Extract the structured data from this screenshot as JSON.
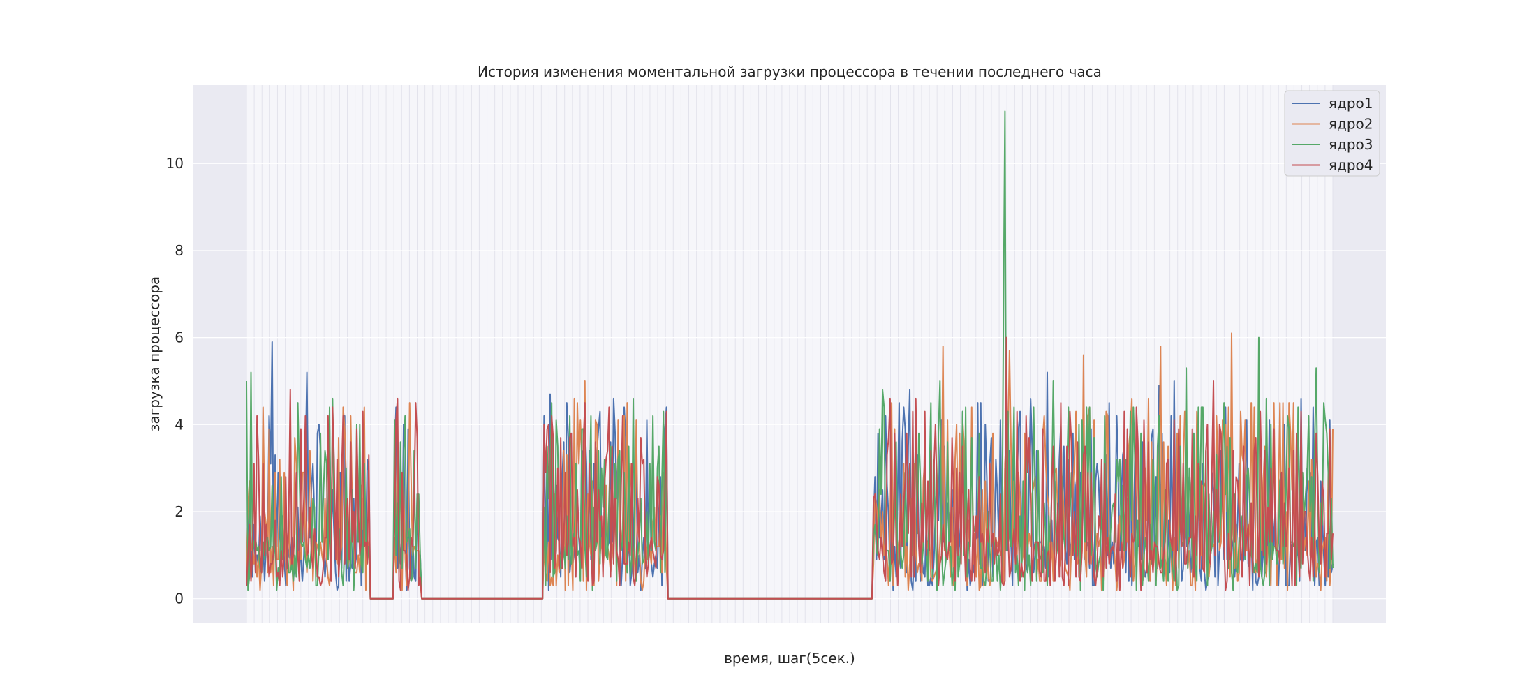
{
  "chart_data": {
    "type": "line",
    "title": "История изменения моментальной загрузки процессора в течении последнего часа",
    "xlabel": "время, шаг(5сек.)",
    "ylabel": "загрузка процессора",
    "ylim": [
      -0.55,
      11.8
    ],
    "yticks": [
      0,
      2,
      4,
      6,
      8,
      10
    ],
    "xticks": [],
    "n_points": 720,
    "grid": true,
    "legend_position": "top-right",
    "colors": {
      "background": "#EAEAF2",
      "plot_area": "#F6F6FA",
      "grid": "#FFFFFF"
    },
    "series": [
      {
        "name": "ядро1",
        "color": "#4C72B0",
        "seed": 11,
        "peaks": [
          [
            20,
            5.9
          ],
          [
            48,
            5.2
          ],
          [
            225,
            5.0
          ],
          [
            243,
            4.7
          ],
          [
            530,
            4.8
          ],
          [
            640,
            5.2
          ],
          [
            730,
            4.9
          ],
          [
            742,
            5.0
          ]
        ]
      },
      {
        "name": "ядро2",
        "color": "#DD8452",
        "seed": 23,
        "peaks": [
          [
            77,
            4.4
          ],
          [
            101,
            4.8
          ],
          [
            271,
            5.0
          ],
          [
            557,
            5.8
          ],
          [
            610,
            5.7
          ],
          [
            669,
            5.6
          ],
          [
            731,
            5.8
          ],
          [
            788,
            6.1
          ]
        ]
      },
      {
        "name": "ядро3",
        "color": "#55A868",
        "seed": 37,
        "peaks": [
          [
            0,
            5.0
          ],
          [
            4,
            5.2
          ],
          [
            211,
            4.8
          ],
          [
            276,
            4.2
          ],
          [
            509,
            4.8
          ],
          [
            555,
            5.0
          ],
          [
            606,
            6.4
          ],
          [
            752,
            5.3
          ],
          [
            810,
            6.0
          ],
          [
            856,
            5.3
          ],
          [
            607,
            11.2
          ],
          [
            646,
            5.0
          ]
        ]
      },
      {
        "name": "ядро4",
        "color": "#C44E52",
        "seed": 53,
        "peaks": [
          [
            8,
            4.2
          ],
          [
            35,
            4.8
          ],
          [
            47,
            4.2
          ],
          [
            406,
            5.2
          ],
          [
            535,
            4.6
          ],
          [
            608,
            6.0
          ],
          [
            652,
            4.5
          ],
          [
            773,
            5.0
          ]
        ]
      }
    ],
    "segments": [
      {
        "type": "active",
        "start": 0,
        "end": 81
      },
      {
        "type": "idle",
        "start": 82,
        "end": 97
      },
      {
        "type": "active",
        "start": 98,
        "end": 115
      },
      {
        "type": "idle",
        "start": 116,
        "end": 196
      },
      {
        "type": "active",
        "start": 197,
        "end": 278
      },
      {
        "type": "idle",
        "start": 279,
        "end": 414
      },
      {
        "type": "active",
        "start": 415,
        "end": 719
      }
    ]
  }
}
